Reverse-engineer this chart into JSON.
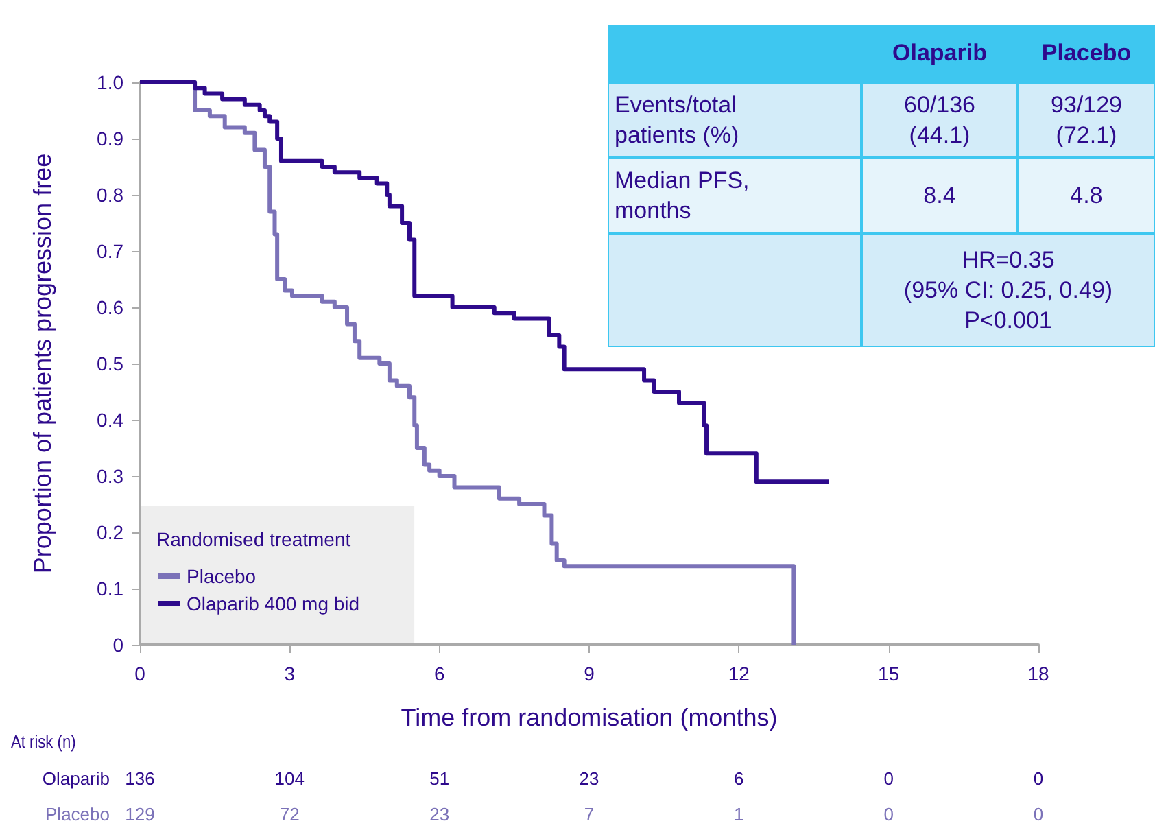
{
  "chart_data": {
    "type": "step",
    "xlabel": "Time from randomisation (months)",
    "ylabel": "Proportion of patients progression free",
    "legend_title": "Randomised treatment",
    "legend": "bottom left",
    "marker": "none",
    "line_style": "solid",
    "grid": false,
    "xlim": [
      0,
      18
    ],
    "xticks": [
      0,
      3,
      6,
      9,
      12,
      15,
      18
    ],
    "ylim": [
      0,
      1
    ],
    "yticks": [
      0,
      0.1,
      0.2,
      0.3,
      0.4,
      0.5,
      0.6,
      0.7,
      0.8,
      0.9,
      {
        "value": 1,
        "label": "1.0"
      }
    ],
    "series": [
      {
        "name": "Placebo",
        "color": "#7b72b8",
        "x": [
          0,
          1.1,
          1.4,
          1.7,
          2.1,
          2.3,
          2.5,
          2.6,
          2.7,
          2.75,
          2.9,
          3.05,
          3.65,
          3.9,
          4.15,
          4.3,
          4.4,
          4.8,
          5.0,
          5.15,
          5.4,
          5.5,
          5.55,
          5.7,
          5.8,
          6.0,
          6.3,
          7.2,
          7.6,
          8.1,
          8.25,
          8.35,
          8.5,
          13.1
        ],
        "values": [
          1,
          0.95,
          0.94,
          0.92,
          0.91,
          0.88,
          0.85,
          0.77,
          0.73,
          0.65,
          0.63,
          0.62,
          0.61,
          0.6,
          0.57,
          0.54,
          0.51,
          0.5,
          0.47,
          0.46,
          0.44,
          0.39,
          0.35,
          0.32,
          0.31,
          0.3,
          0.28,
          0.26,
          0.25,
          0.23,
          0.18,
          0.15,
          0.14,
          0
        ]
      },
      {
        "name": "Olaparib 400 mg bid",
        "color": "#2e0a8c",
        "x": [
          0,
          1.1,
          1.3,
          1.65,
          2.1,
          2.4,
          2.5,
          2.6,
          2.75,
          2.83,
          3.65,
          3.9,
          4.4,
          4.75,
          4.95,
          5.0,
          5.25,
          5.4,
          5.5,
          6.26,
          7.1,
          7.5,
          8.2,
          8.4,
          8.5,
          10.1,
          10.3,
          10.8,
          11.3,
          11.35,
          12.35,
          13.8
        ],
        "values": [
          1,
          0.99,
          0.98,
          0.97,
          0.96,
          0.95,
          0.94,
          0.93,
          0.9,
          0.86,
          0.85,
          0.84,
          0.83,
          0.82,
          0.8,
          0.78,
          0.75,
          0.72,
          0.62,
          0.6,
          0.59,
          0.58,
          0.55,
          0.53,
          0.49,
          0.47,
          0.45,
          0.43,
          0.39,
          0.34,
          0.29,
          0.29
        ]
      }
    ],
    "annotations": [
      "Olaparib",
      "Placebo",
      "Events/total\npatients (%)",
      "60/136\n(44.1)",
      "93/129\n(72.1)",
      "Median PFS,\nmonths",
      "8.4",
      "4.8",
      "HR=0.35\n(95% CI: 0.25, 0.49)\nP<0.001",
      "At risk (n)",
      "Olaparib",
      "136",
      "104",
      "51",
      "23",
      "6",
      "0",
      "0",
      "Placebo",
      "129",
      "72",
      "23",
      "7",
      "1",
      "0",
      "0"
    ]
  }
}
